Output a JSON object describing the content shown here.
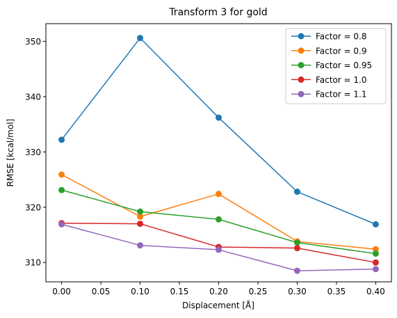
{
  "chart_data": {
    "type": "line",
    "title": "Transform 3 for gold",
    "xlabel": "Displacement [Å]",
    "ylabel": "RMSE [kcal/mol]",
    "x": [
      0.0,
      0.1,
      0.2,
      0.3,
      0.4
    ],
    "xlim": [
      -0.02,
      0.42
    ],
    "ylim": [
      306.5,
      353.2
    ],
    "xticks": [
      0.0,
      0.05,
      0.1,
      0.15,
      0.2,
      0.25,
      0.3,
      0.35,
      0.4
    ],
    "xtick_labels": [
      "0.00",
      "0.05",
      "0.10",
      "0.15",
      "0.20",
      "0.25",
      "0.30",
      "0.35",
      "0.40"
    ],
    "yticks": [
      310,
      320,
      330,
      340,
      350
    ],
    "ytick_labels": [
      "310",
      "320",
      "330",
      "340",
      "350"
    ],
    "grid": false,
    "legend_position": "top-right",
    "series": [
      {
        "name": "Factor = 0.8",
        "color": "#1f77b4",
        "values": [
          332.2,
          350.6,
          336.2,
          322.8,
          316.9
        ]
      },
      {
        "name": "Factor = 0.9",
        "color": "#ff7f0e",
        "values": [
          325.9,
          318.3,
          322.4,
          313.8,
          312.4
        ]
      },
      {
        "name": "Factor = 0.95",
        "color": "#2ca02c",
        "values": [
          323.1,
          319.2,
          317.8,
          313.6,
          311.6
        ]
      },
      {
        "name": "Factor = 1.0",
        "color": "#d62728",
        "values": [
          317.1,
          317.0,
          312.8,
          312.6,
          310.0
        ]
      },
      {
        "name": "Factor = 1.1",
        "color": "#9467bd",
        "values": [
          316.9,
          313.1,
          312.3,
          308.5,
          308.8
        ]
      }
    ]
  }
}
